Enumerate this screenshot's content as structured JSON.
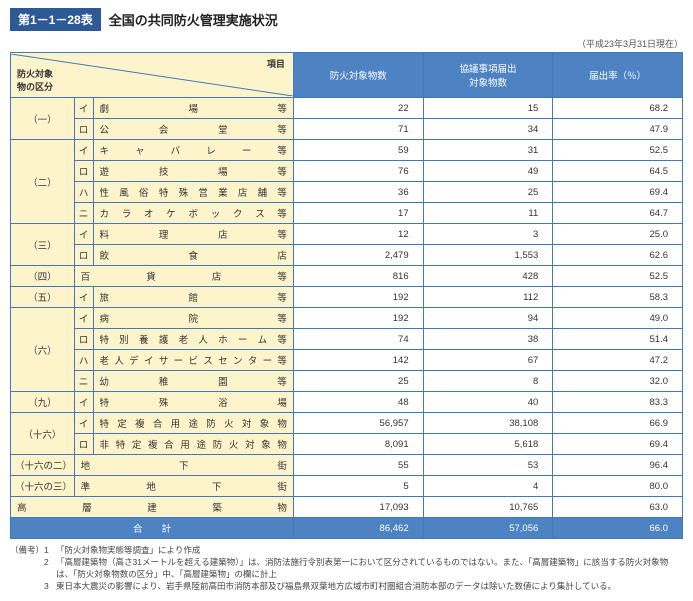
{
  "tableNumber": "第1－1－28表",
  "title": "全国の共同防火管理実施状況",
  "asOfDate": "（平成23年3月31日現在）",
  "header": {
    "split_top": "項目",
    "split_bottom": "防火対象\n物の区分",
    "col2": "防火対象物数",
    "col3": "協議事項届出\n対象物数",
    "col4": "届出率（％）"
  },
  "groups": [
    {
      "cat": "（一）",
      "rows": [
        {
          "sub": "イ",
          "name": "劇　場　等",
          "v1": "22",
          "v2": "15",
          "v3": "68.2"
        },
        {
          "sub": "ロ",
          "name": "公　会　堂　等",
          "v1": "71",
          "v2": "34",
          "v3": "47.9"
        }
      ]
    },
    {
      "cat": "（二）",
      "rows": [
        {
          "sub": "イ",
          "name": "キ　ャ　バ　レ　ー　等",
          "v1": "59",
          "v2": "31",
          "v3": "52.5"
        },
        {
          "sub": "ロ",
          "name": "遊　技　場　等",
          "v1": "76",
          "v2": "49",
          "v3": "64.5"
        },
        {
          "sub": "ハ",
          "name": "性 風 俗 特 殊 営 業 店 舗 等",
          "v1": "36",
          "v2": "25",
          "v3": "69.4"
        },
        {
          "sub": "ニ",
          "name": "カ ラ オ ケ ボ ッ ク ス 等",
          "v1": "17",
          "v2": "11",
          "v3": "64.7"
        }
      ]
    },
    {
      "cat": "（三）",
      "rows": [
        {
          "sub": "イ",
          "name": "料　理　店　等",
          "v1": "12",
          "v2": "3",
          "v3": "25.0"
        },
        {
          "sub": "ロ",
          "name": "飲　食　店",
          "v1": "2,479",
          "v2": "1,553",
          "v3": "62.6"
        }
      ]
    },
    {
      "cat": "（四）",
      "rows": [
        {
          "sub": "",
          "name": "百　貨　店　等",
          "v1": "816",
          "v2": "428",
          "v3": "52.5"
        }
      ]
    },
    {
      "cat": "（五）",
      "rows": [
        {
          "sub": "イ",
          "name": "旅　館　等",
          "v1": "192",
          "v2": "112",
          "v3": "58.3"
        }
      ]
    },
    {
      "cat": "（六）",
      "rows": [
        {
          "sub": "イ",
          "name": "病　院　等",
          "v1": "192",
          "v2": "94",
          "v3": "49.0"
        },
        {
          "sub": "ロ",
          "name": "特 別 養 護 老 人 ホ ー ム 等",
          "v1": "74",
          "v2": "38",
          "v3": "51.4"
        },
        {
          "sub": "ハ",
          "name": "老 人 デ イ サ ー ビ ス セ ン タ ー 等",
          "v1": "142",
          "v2": "67",
          "v3": "47.2"
        },
        {
          "sub": "ニ",
          "name": "幼　稚　園　等",
          "v1": "25",
          "v2": "8",
          "v3": "32.0"
        }
      ]
    },
    {
      "cat": "（九）",
      "rows": [
        {
          "sub": "イ",
          "name": "特　殊　浴　場",
          "v1": "48",
          "v2": "40",
          "v3": "83.3"
        }
      ]
    },
    {
      "cat": "（十六）",
      "rows": [
        {
          "sub": "イ",
          "name": "特 定 複 合 用 途 防 火 対 象 物",
          "v1": "56,957",
          "v2": "38,108",
          "v3": "66.9"
        },
        {
          "sub": "ロ",
          "name": "非 特 定 複 合 用 途 防 火 対 象 物",
          "v1": "8,091",
          "v2": "5,618",
          "v3": "69.4"
        }
      ]
    },
    {
      "cat": "（十六の二）",
      "rows": [
        {
          "sub": "",
          "name": "地　下　街",
          "v1": "55",
          "v2": "53",
          "v3": "96.4"
        }
      ]
    },
    {
      "cat": "（十六の三）",
      "rows": [
        {
          "sub": "",
          "name": "準　地　下　街",
          "v1": "5",
          "v2": "4",
          "v3": "80.0"
        }
      ]
    }
  ],
  "highRise": {
    "name": "高　層　建　築　物",
    "v1": "17,093",
    "v2": "10,765",
    "v3": "63.0"
  },
  "total": {
    "label": "合　　計",
    "v1": "86,462",
    "v2": "57,056",
    "v3": "66.0"
  },
  "notes": {
    "label": "（備考）",
    "items": [
      "「防火対象物実態等調査」により作成",
      "「高層建築物（高さ31メートルを超える建築物）」は、消防法施行令別表第一において区分されているものではない。また、「高層建築物」に該当する防火対象物は、「防火対象物数の区分」中、「高層建築物」の欄に計上",
      "東日本大震災の影響により、岩手県陸前高田市消防本部及び福島県双葉地方広域市町村圏組合消防本部のデータは除いた数値により集計している。"
    ]
  },
  "colors": {
    "headerBg": "#4d82c3",
    "labelBg": "#fdf4cc",
    "border": "#4178b5",
    "numberBg": "#2d5a94"
  }
}
